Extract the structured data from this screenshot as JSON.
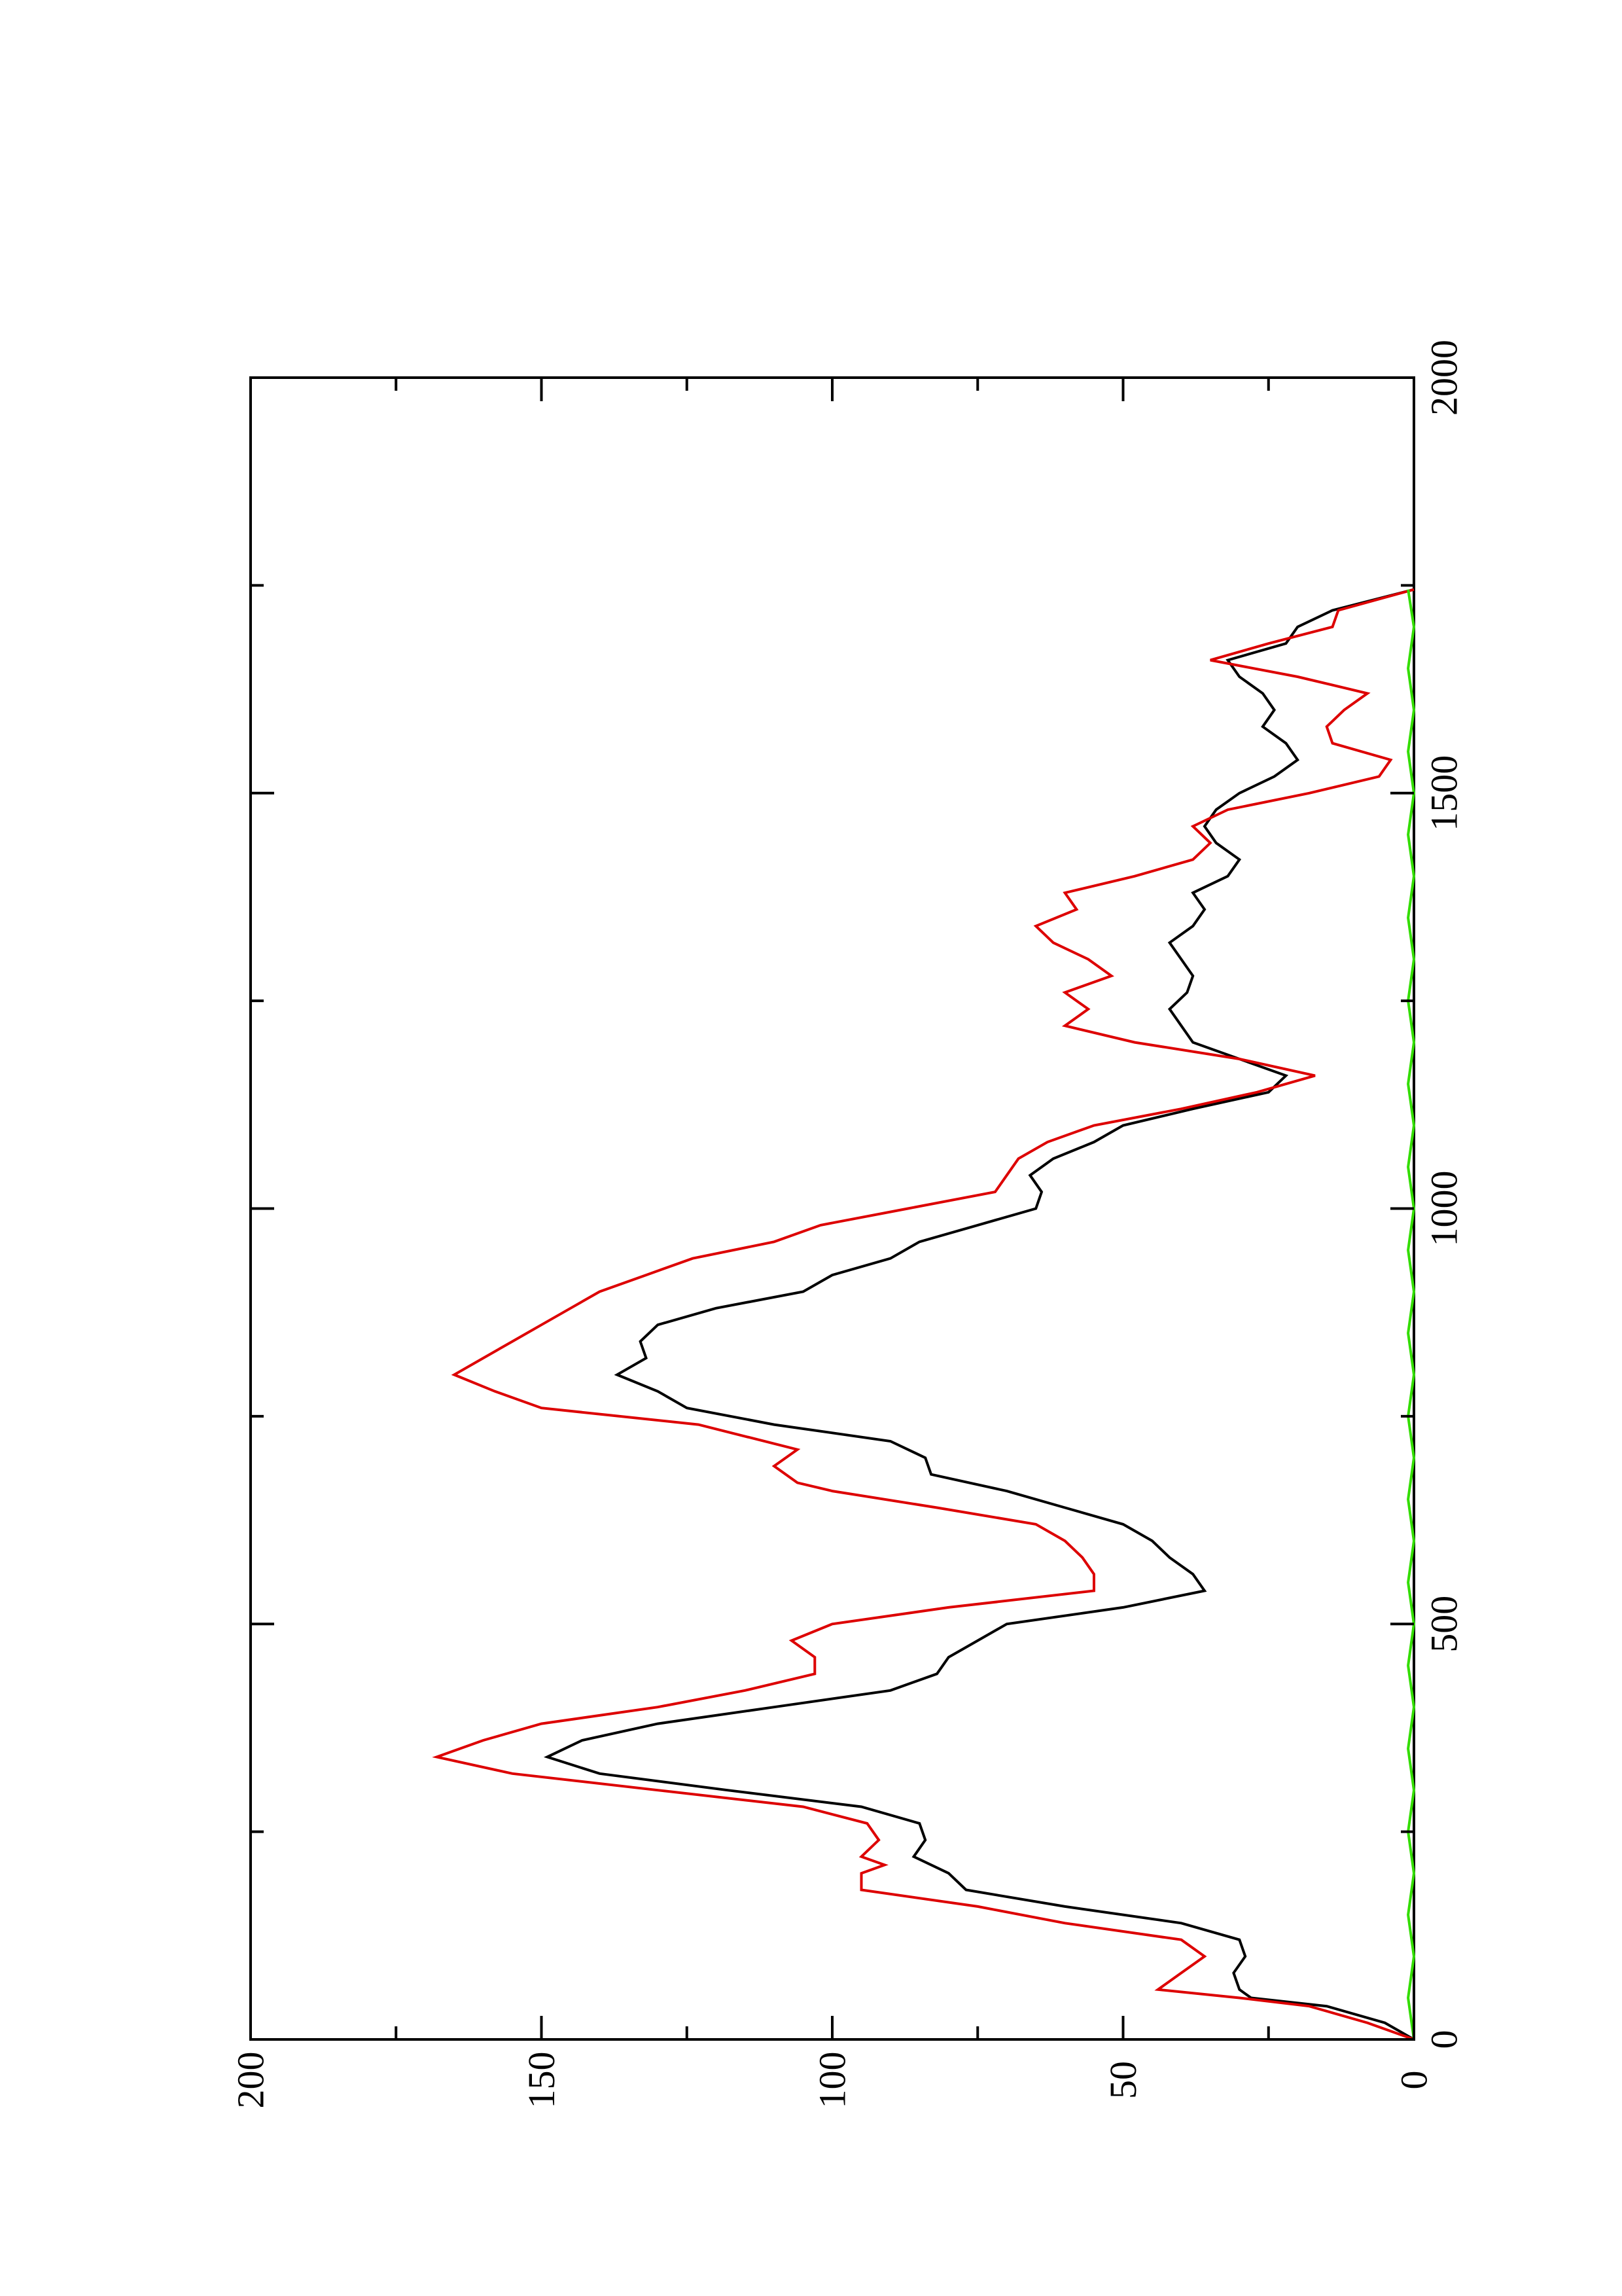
{
  "chart_data": {
    "type": "line",
    "title": "",
    "xlabel": "",
    "ylabel": "",
    "xlim": [
      0,
      2000
    ],
    "ylim": [
      0,
      200
    ],
    "x_ticks": [
      0,
      500,
      1000,
      1500,
      2000
    ],
    "y_ticks": [
      0,
      50,
      100,
      150,
      200
    ],
    "x_tick_labels": [
      "0",
      "500",
      "1000",
      "1500",
      "2000"
    ],
    "y_tick_labels": [
      "0",
      "50",
      "100",
      "150",
      "200"
    ],
    "orientation": "rotated 90° counter-clockwise on the page",
    "grid": false,
    "legend": "none",
    "series": [
      {
        "color": "#000000",
        "points": [
          [
            0,
            0
          ],
          [
            20,
            5
          ],
          [
            40,
            15
          ],
          [
            50,
            28
          ],
          [
            60,
            30
          ],
          [
            80,
            31
          ],
          [
            100,
            29
          ],
          [
            120,
            30
          ],
          [
            140,
            40
          ],
          [
            160,
            60
          ],
          [
            180,
            77
          ],
          [
            200,
            80
          ],
          [
            220,
            86
          ],
          [
            240,
            84
          ],
          [
            260,
            85
          ],
          [
            280,
            95
          ],
          [
            300,
            118
          ],
          [
            320,
            140
          ],
          [
            340,
            149
          ],
          [
            360,
            143
          ],
          [
            380,
            130
          ],
          [
            400,
            110
          ],
          [
            420,
            90
          ],
          [
            440,
            82
          ],
          [
            460,
            80
          ],
          [
            480,
            75
          ],
          [
            500,
            70
          ],
          [
            520,
            50
          ],
          [
            540,
            36
          ],
          [
            560,
            38
          ],
          [
            580,
            42
          ],
          [
            600,
            45
          ],
          [
            620,
            50
          ],
          [
            640,
            60
          ],
          [
            660,
            70
          ],
          [
            680,
            83
          ],
          [
            700,
            84
          ],
          [
            720,
            90
          ],
          [
            740,
            110
          ],
          [
            760,
            125
          ],
          [
            780,
            130
          ],
          [
            800,
            137
          ],
          [
            820,
            132
          ],
          [
            840,
            133
          ],
          [
            860,
            130
          ],
          [
            880,
            120
          ],
          [
            900,
            105
          ],
          [
            920,
            100
          ],
          [
            940,
            90
          ],
          [
            960,
            85
          ],
          [
            980,
            75
          ],
          [
            1000,
            65
          ],
          [
            1020,
            64
          ],
          [
            1040,
            66
          ],
          [
            1060,
            62
          ],
          [
            1080,
            55
          ],
          [
            1100,
            50
          ],
          [
            1120,
            38
          ],
          [
            1140,
            25
          ],
          [
            1160,
            22
          ],
          [
            1180,
            30
          ],
          [
            1200,
            38
          ],
          [
            1220,
            40
          ],
          [
            1240,
            42
          ],
          [
            1260,
            39
          ],
          [
            1280,
            38
          ],
          [
            1300,
            40
          ],
          [
            1320,
            42
          ],
          [
            1340,
            38
          ],
          [
            1360,
            36
          ],
          [
            1380,
            38
          ],
          [
            1400,
            32
          ],
          [
            1420,
            30
          ],
          [
            1440,
            34
          ],
          [
            1460,
            36
          ],
          [
            1480,
            34
          ],
          [
            1500,
            30
          ],
          [
            1520,
            24
          ],
          [
            1540,
            20
          ],
          [
            1560,
            22
          ],
          [
            1580,
            26
          ],
          [
            1600,
            24
          ],
          [
            1620,
            26
          ],
          [
            1640,
            30
          ],
          [
            1660,
            32
          ],
          [
            1680,
            22
          ],
          [
            1700,
            20
          ],
          [
            1720,
            14
          ],
          [
            1745,
            0
          ]
        ]
      },
      {
        "color": "#dd0000",
        "points": [
          [
            0,
            0
          ],
          [
            20,
            8
          ],
          [
            40,
            18
          ],
          [
            50,
            30
          ],
          [
            60,
            44
          ],
          [
            80,
            40
          ],
          [
            100,
            36
          ],
          [
            120,
            40
          ],
          [
            140,
            60
          ],
          [
            160,
            75
          ],
          [
            180,
            95
          ],
          [
            200,
            95
          ],
          [
            210,
            91
          ],
          [
            220,
            95
          ],
          [
            240,
            92
          ],
          [
            260,
            94
          ],
          [
            280,
            105
          ],
          [
            300,
            130
          ],
          [
            320,
            155
          ],
          [
            340,
            168
          ],
          [
            360,
            160
          ],
          [
            380,
            150
          ],
          [
            400,
            130
          ],
          [
            420,
            115
          ],
          [
            440,
            103
          ],
          [
            460,
            103
          ],
          [
            480,
            107
          ],
          [
            500,
            100
          ],
          [
            520,
            80
          ],
          [
            540,
            55
          ],
          [
            560,
            55
          ],
          [
            580,
            57
          ],
          [
            600,
            60
          ],
          [
            620,
            65
          ],
          [
            640,
            82
          ],
          [
            660,
            100
          ],
          [
            670,
            106
          ],
          [
            690,
            110
          ],
          [
            710,
            106
          ],
          [
            740,
            123
          ],
          [
            760,
            150
          ],
          [
            780,
            158
          ],
          [
            800,
            165
          ],
          [
            820,
            160
          ],
          [
            840,
            155
          ],
          [
            860,
            150
          ],
          [
            880,
            145
          ],
          [
            900,
            140
          ],
          [
            920,
            132
          ],
          [
            940,
            124
          ],
          [
            960,
            110
          ],
          [
            980,
            102
          ],
          [
            1000,
            87
          ],
          [
            1020,
            72
          ],
          [
            1040,
            70
          ],
          [
            1060,
            68
          ],
          [
            1080,
            63
          ],
          [
            1100,
            55
          ],
          [
            1120,
            40
          ],
          [
            1140,
            27
          ],
          [
            1160,
            17
          ],
          [
            1180,
            30
          ],
          [
            1200,
            48
          ],
          [
            1220,
            60
          ],
          [
            1240,
            56
          ],
          [
            1260,
            60
          ],
          [
            1280,
            52
          ],
          [
            1300,
            56
          ],
          [
            1320,
            62
          ],
          [
            1340,
            65
          ],
          [
            1360,
            58
          ],
          [
            1380,
            60
          ],
          [
            1400,
            48
          ],
          [
            1420,
            38
          ],
          [
            1440,
            35
          ],
          [
            1460,
            38
          ],
          [
            1480,
            32
          ],
          [
            1500,
            18
          ],
          [
            1520,
            6
          ],
          [
            1540,
            4
          ],
          [
            1560,
            14
          ],
          [
            1580,
            15
          ],
          [
            1600,
            12
          ],
          [
            1620,
            8
          ],
          [
            1640,
            20
          ],
          [
            1660,
            35
          ],
          [
            1680,
            25
          ],
          [
            1700,
            14
          ],
          [
            1720,
            13
          ],
          [
            1745,
            0
          ]
        ]
      },
      {
        "color": "#33dd00",
        "points": [
          [
            0,
            0
          ],
          [
            50,
            1
          ],
          [
            100,
            0
          ],
          [
            150,
            1
          ],
          [
            200,
            0
          ],
          [
            250,
            1
          ],
          [
            300,
            0
          ],
          [
            350,
            1
          ],
          [
            400,
            0
          ],
          [
            450,
            1
          ],
          [
            500,
            0
          ],
          [
            550,
            1
          ],
          [
            600,
            0
          ],
          [
            650,
            1
          ],
          [
            700,
            0
          ],
          [
            750,
            1
          ],
          [
            800,
            0
          ],
          [
            850,
            1
          ],
          [
            900,
            0
          ],
          [
            950,
            1
          ],
          [
            1000,
            0
          ],
          [
            1050,
            1
          ],
          [
            1100,
            0
          ],
          [
            1150,
            1
          ],
          [
            1200,
            0
          ],
          [
            1250,
            1
          ],
          [
            1300,
            0
          ],
          [
            1350,
            1
          ],
          [
            1400,
            0
          ],
          [
            1450,
            1
          ],
          [
            1500,
            0
          ],
          [
            1550,
            1
          ],
          [
            1600,
            0
          ],
          [
            1650,
            1
          ],
          [
            1700,
            0
          ],
          [
            1745,
            1
          ]
        ]
      }
    ]
  }
}
